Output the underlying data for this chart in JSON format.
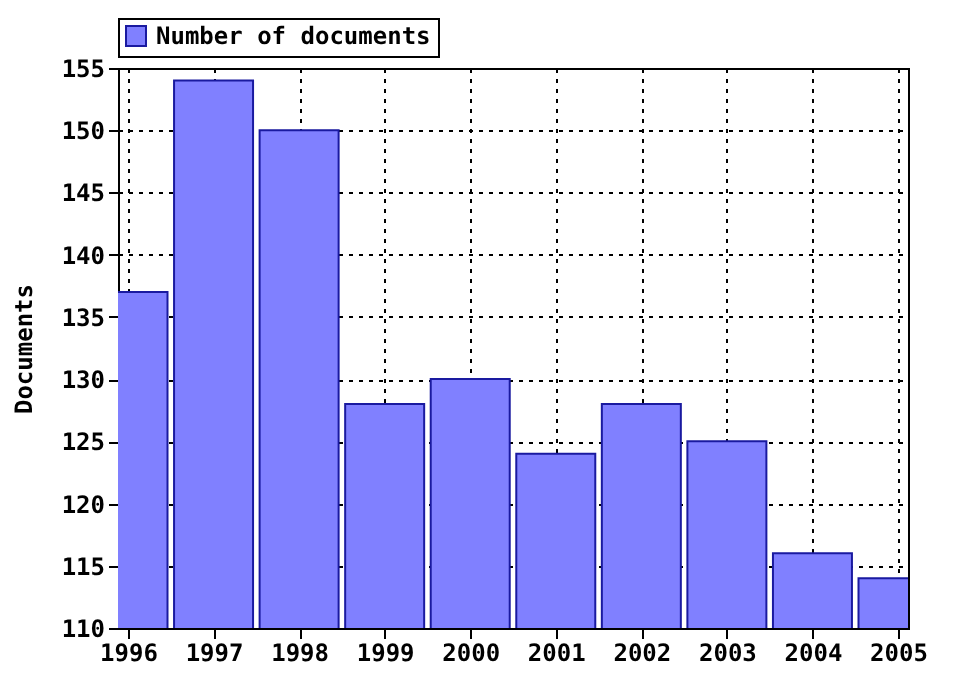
{
  "chart_data": {
    "type": "bar",
    "ylabel": "Documents",
    "x": [
      1996,
      1997,
      1998,
      1999,
      2000,
      2001,
      2002,
      2003,
      2004,
      2005
    ],
    "series": [
      {
        "name": "Number of documents",
        "color": "#8080ff",
        "values": [
          137,
          154,
          150,
          128,
          130,
          124,
          128,
          125,
          116,
          114
        ]
      }
    ],
    "xlim": [
      1996,
      2005
    ],
    "xticks": [
      1996,
      1997,
      1998,
      1999,
      2000,
      2001,
      2002,
      2003,
      2004,
      2005
    ],
    "ylim": [
      110,
      155
    ],
    "yticks": [
      110,
      115,
      120,
      125,
      130,
      135,
      140,
      145,
      150,
      155
    ],
    "grid": true,
    "legend": "top left"
  }
}
